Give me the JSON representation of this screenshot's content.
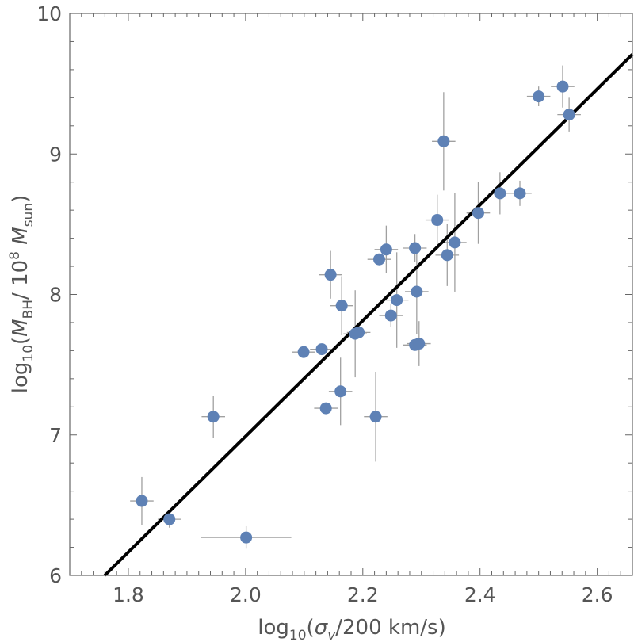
{
  "chart_data": {
    "type": "scatter",
    "title": "",
    "xlabel": {
      "parts": [
        "log",
        "10",
        "(",
        "σ",
        "v",
        "/200 km/s)"
      ]
    },
    "ylabel": {
      "parts": [
        "log",
        "10",
        "(",
        "M",
        "BH",
        "/ 10",
        "8",
        " M",
        "sun",
        ")"
      ]
    },
    "xlim": [
      1.7,
      2.66
    ],
    "ylim": [
      6,
      10
    ],
    "xticks": [
      1.8,
      2.0,
      2.2,
      2.4,
      2.6
    ],
    "xtick_labels": [
      "1.8",
      "2.0",
      "2.2",
      "2.4",
      "2.6"
    ],
    "yticks": [
      6,
      7,
      8,
      9,
      10
    ],
    "ytick_labels": [
      "6",
      "7",
      "8",
      "9",
      "10"
    ],
    "grid": false,
    "colors": {
      "points": "#5e81b5",
      "errorbars": "#a0a0a0",
      "fit": "#000000",
      "frame": "#666666"
    },
    "points": [
      {
        "x": 1.823,
        "y": 6.53,
        "xerr": 0.02,
        "yerr": 0.17
      },
      {
        "x": 1.87,
        "y": 6.4,
        "xerr": 0.02,
        "yerr": 0.06
      },
      {
        "x": 2.001,
        "y": 6.27,
        "xerr": 0.077,
        "yerr": 0.08
      },
      {
        "x": 1.945,
        "y": 7.13,
        "xerr": 0.02,
        "yerr": 0.15
      },
      {
        "x": 2.099,
        "y": 7.59,
        "xerr": 0.02,
        "yerr": 0.03
      },
      {
        "x": 2.13,
        "y": 7.61,
        "xerr": 0.02,
        "yerr": 0.03
      },
      {
        "x": 2.137,
        "y": 7.19,
        "xerr": 0.02,
        "yerr": 0.03
      },
      {
        "x": 2.162,
        "y": 7.31,
        "xerr": 0.02,
        "yerr": 0.24
      },
      {
        "x": 2.145,
        "y": 8.14,
        "xerr": 0.02,
        "yerr": 0.17
      },
      {
        "x": 2.164,
        "y": 7.92,
        "xerr": 0.02,
        "yerr": 0.21
      },
      {
        "x": 2.187,
        "y": 7.72,
        "xerr": 0.02,
        "yerr": 0.31
      },
      {
        "x": 2.193,
        "y": 7.73,
        "xerr": 0.02,
        "yerr": 0.03
      },
      {
        "x": 2.222,
        "y": 7.13,
        "xerr": 0.02,
        "yerr": 0.32
      },
      {
        "x": 2.228,
        "y": 8.25,
        "xerr": 0.02,
        "yerr": 0.03
      },
      {
        "x": 2.24,
        "y": 8.32,
        "xerr": 0.02,
        "yerr": 0.17
      },
      {
        "x": 2.248,
        "y": 7.85,
        "xerr": 0.02,
        "yerr": 0.08
      },
      {
        "x": 2.258,
        "y": 7.96,
        "xerr": 0.02,
        "yerr": 0.34
      },
      {
        "x": 2.289,
        "y": 7.64,
        "xerr": 0.02,
        "yerr": 0.03
      },
      {
        "x": 2.296,
        "y": 7.65,
        "xerr": 0.02,
        "yerr": 0.16
      },
      {
        "x": 2.289,
        "y": 8.33,
        "xerr": 0.02,
        "yerr": 0.1
      },
      {
        "x": 2.292,
        "y": 8.02,
        "xerr": 0.02,
        "yerr": 0.3
      },
      {
        "x": 2.327,
        "y": 8.53,
        "xerr": 0.02,
        "yerr": 0.18
      },
      {
        "x": 2.338,
        "y": 9.09,
        "xerr": 0.02,
        "yerr": 0.35
      },
      {
        "x": 2.344,
        "y": 8.28,
        "xerr": 0.02,
        "yerr": 0.22
      },
      {
        "x": 2.357,
        "y": 8.37,
        "xerr": 0.02,
        "yerr": 0.35
      },
      {
        "x": 2.397,
        "y": 8.58,
        "xerr": 0.02,
        "yerr": 0.22
      },
      {
        "x": 2.434,
        "y": 8.72,
        "xerr": 0.02,
        "yerr": 0.15
      },
      {
        "x": 2.468,
        "y": 8.72,
        "xerr": 0.02,
        "yerr": 0.09
      },
      {
        "x": 2.5,
        "y": 9.41,
        "xerr": 0.02,
        "yerr": 0.07
      },
      {
        "x": 2.541,
        "y": 9.48,
        "xerr": 0.02,
        "yerr": 0.15
      },
      {
        "x": 2.552,
        "y": 9.28,
        "xerr": 0.02,
        "yerr": 0.12
      }
    ],
    "fit_line": {
      "slope": 4.12,
      "intercept": -1.25
    }
  }
}
